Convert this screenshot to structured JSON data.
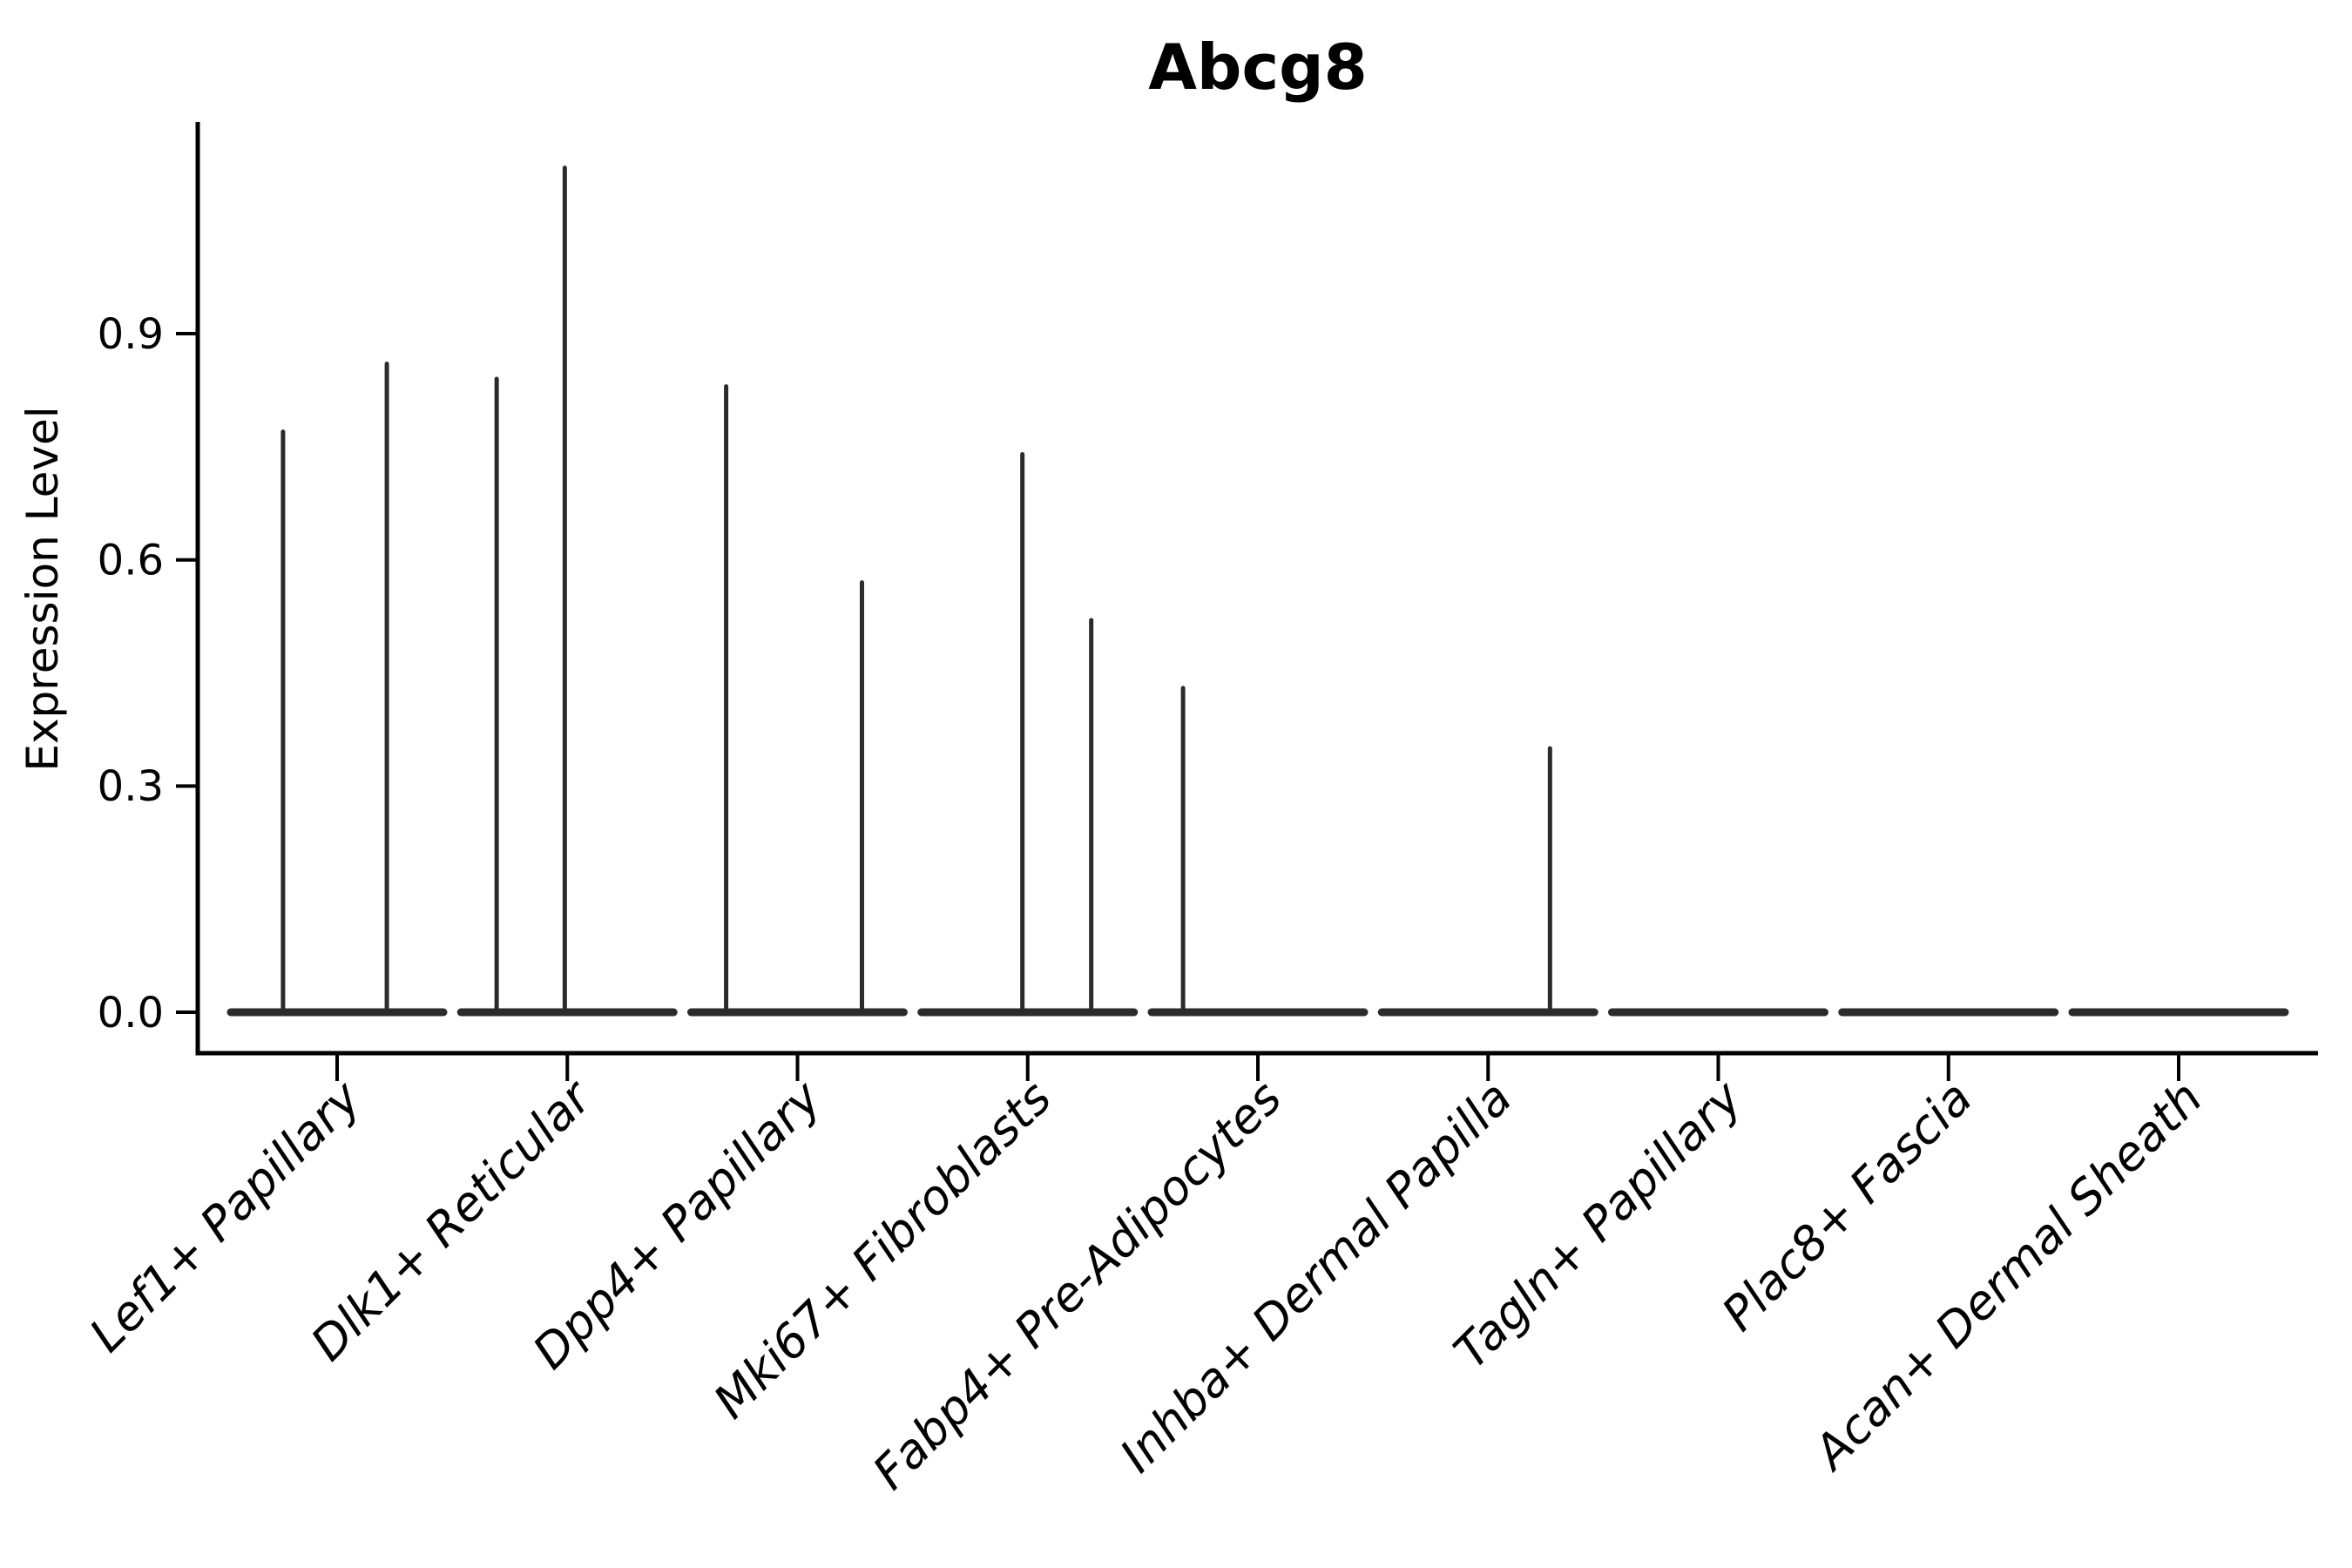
{
  "title": "Abcg8",
  "chart_data": {
    "type": "violin",
    "title": "Abcg8",
    "xlabel": "",
    "ylabel": "Expression Level",
    "categories": [
      "Lef1+ Papillary",
      "Dlk1+ Reticular",
      "Dpp4+ Papillary",
      "Mki67+ Fibroblasts",
      "Fabp4+ Pre-Adipocytes",
      "Inhba+ Dermal Papilla",
      "Tagln+ Papillary",
      "Plac8+ Fascia",
      "Acan+ Dermal Sheath"
    ],
    "yticks": [
      {
        "value": 0.0,
        "label": "0.0"
      },
      {
        "value": 0.3,
        "label": "0.3"
      },
      {
        "value": 0.6,
        "label": "0.6"
      },
      {
        "value": 0.9,
        "label": "0.9"
      }
    ],
    "ylim": [
      -0.054,
      1.18
    ],
    "grid": false,
    "legend_position": "none",
    "x_tick_rotation_deg": 45,
    "violin_color": "#2b2b2b",
    "axis_color": "#000000",
    "violins": [
      {
        "category": "Lef1+ Papillary",
        "base_value": 0.0,
        "spikes": [
          {
            "dx_frac": -0.235,
            "value": 0.77
          },
          {
            "dx_frac": 0.216,
            "value": 0.86
          }
        ]
      },
      {
        "category": "Dlk1+ Reticular",
        "base_value": 0.0,
        "spikes": [
          {
            "dx_frac": -0.307,
            "value": 0.84
          },
          {
            "dx_frac": -0.011,
            "value": 1.12
          }
        ]
      },
      {
        "category": "Dpp4+ Papillary",
        "base_value": 0.0,
        "spikes": [
          {
            "dx_frac": -0.31,
            "value": 0.83
          },
          {
            "dx_frac": 0.28,
            "value": 0.57
          }
        ]
      },
      {
        "category": "Mki67+ Fibroblasts",
        "base_value": 0.0,
        "spikes": [
          {
            "dx_frac": -0.023,
            "value": 0.74
          },
          {
            "dx_frac": 0.276,
            "value": 0.52
          }
        ]
      },
      {
        "category": "Fabp4+ Pre-Adipocytes",
        "base_value": 0.0,
        "spikes": [
          {
            "dx_frac": -0.325,
            "value": 0.43
          }
        ]
      },
      {
        "category": "Inhba+ Dermal Papilla",
        "base_value": 0.0,
        "spikes": [
          {
            "dx_frac": 0.269,
            "value": 0.35
          }
        ]
      },
      {
        "category": "Tagln+ Papillary",
        "base_value": 0.0,
        "spikes": []
      },
      {
        "category": "Plac8+ Fascia",
        "base_value": 0.0,
        "spikes": []
      },
      {
        "category": "Acan+ Dermal Sheath",
        "base_value": 0.0,
        "spikes": []
      }
    ]
  }
}
